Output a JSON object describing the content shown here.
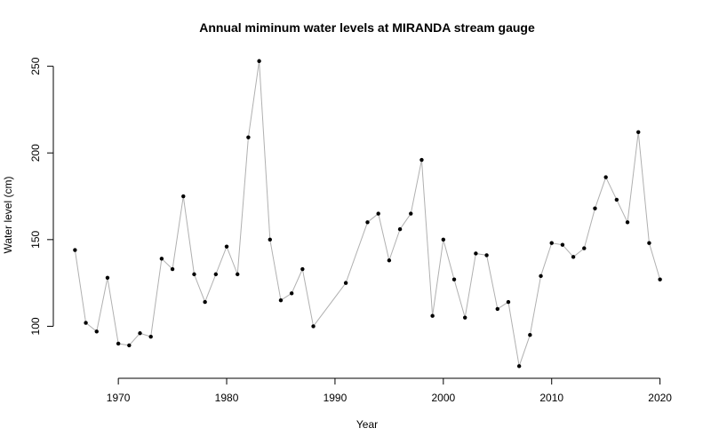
{
  "chart_data": {
    "type": "line",
    "title": "Annual miminum water levels at MIRANDA stream gauge",
    "xlabel": "Year",
    "ylabel": "Water level (cm)",
    "xlim": [
      1964,
      2022
    ],
    "ylim": [
      70,
      258
    ],
    "x_ticks": [
      1970,
      1980,
      1990,
      2000,
      2010,
      2020
    ],
    "y_ticks": [
      100,
      150,
      200,
      250
    ],
    "grid": false,
    "line_color": "#b0b0b0",
    "point_color": "#000000",
    "series": [
      {
        "x": [
          1966,
          1967,
          1968,
          1969,
          1970,
          1971,
          1972,
          1973,
          1974,
          1975,
          1976,
          1977,
          1978,
          1979,
          1980,
          1981,
          1982,
          1983,
          1984,
          1985,
          1986,
          1987,
          1988,
          1991,
          1993,
          1994,
          1995,
          1996,
          1997,
          1998,
          1999,
          2000,
          2001,
          2002,
          2003,
          2004,
          2005,
          2006,
          2007,
          2008,
          2009,
          2010,
          2011,
          2012,
          2013,
          2014,
          2015,
          2016,
          2017,
          2018,
          2019,
          2020
        ],
        "y": [
          144,
          102,
          97,
          128,
          90,
          89,
          96,
          94,
          139,
          133,
          175,
          130,
          114,
          130,
          146,
          130,
          209,
          253,
          150,
          115,
          119,
          133,
          100,
          125,
          160,
          165,
          138,
          156,
          165,
          196,
          106,
          150,
          127,
          105,
          142,
          141,
          110,
          114,
          77,
          95,
          129,
          148,
          147,
          140,
          145,
          168,
          186,
          173,
          160,
          212,
          148,
          127
        ]
      }
    ]
  }
}
